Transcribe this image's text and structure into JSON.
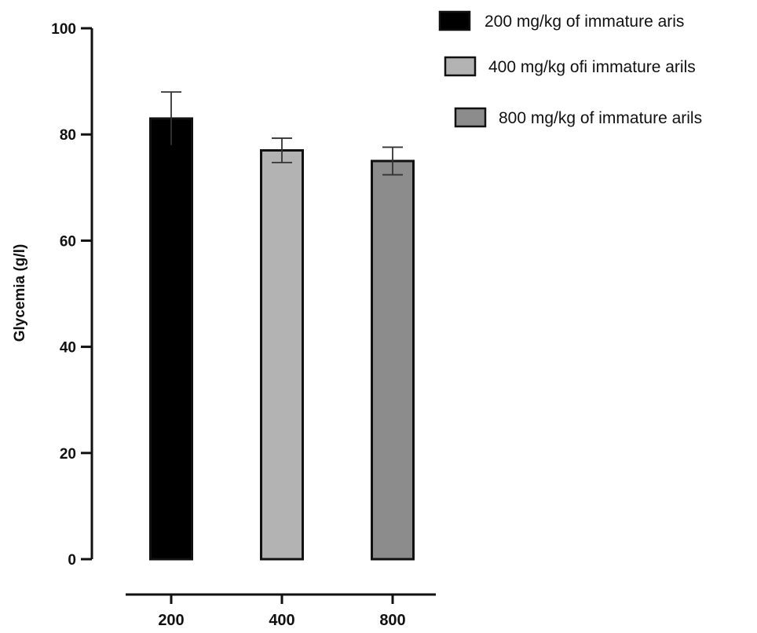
{
  "chart_data": {
    "type": "bar",
    "categories": [
      "200",
      "400",
      "800"
    ],
    "values": [
      83,
      77,
      75
    ],
    "errors": [
      5,
      2.3,
      2.6
    ],
    "ylabel": "Glycemia  (g/l)",
    "xlabel": "",
    "ylim": [
      0,
      100
    ],
    "yticks": [
      0,
      20,
      40,
      60,
      80,
      100
    ],
    "grid": false,
    "legend_position": "top-right",
    "legend": [
      "200 mg/kg of immature aris",
      "400 mg/kg ofi immature arils",
      "800 mg/kg of immature arils"
    ],
    "colors": [
      "#000000",
      "#b3b3b3",
      "#8c8c8c"
    ]
  }
}
